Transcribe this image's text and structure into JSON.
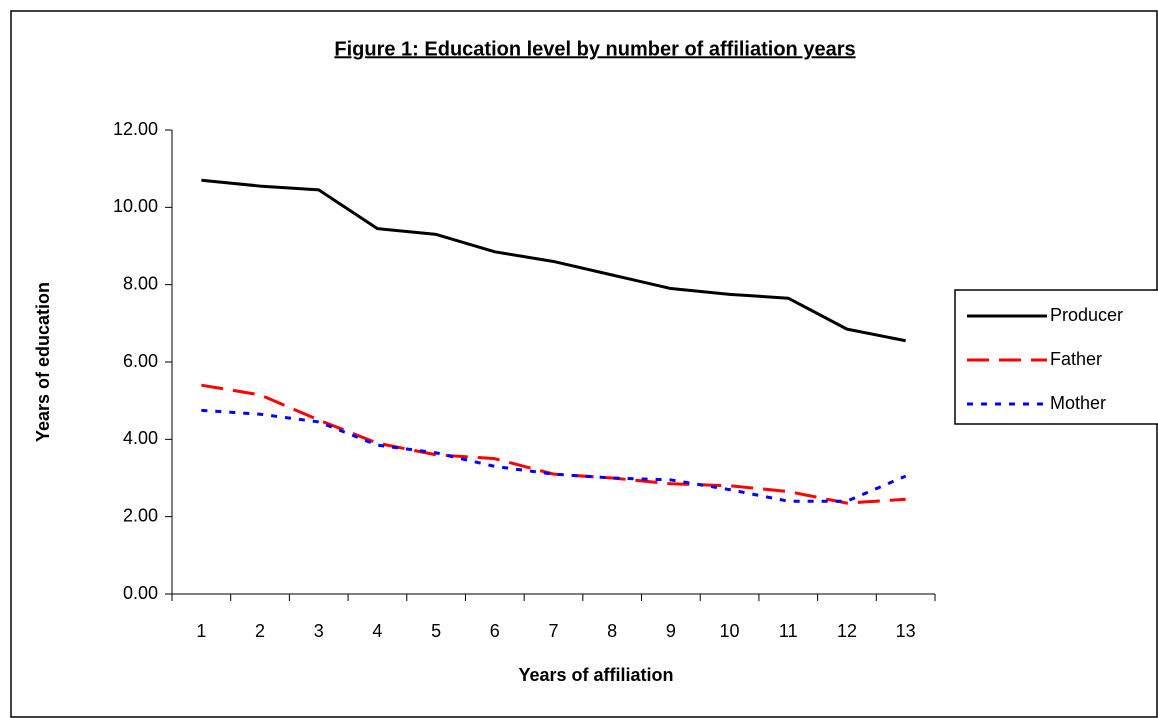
{
  "chart_data": {
    "type": "line",
    "title": "Figure 1: Education level by number of affiliation years",
    "x_label": "Years of affiliation",
    "y_label": "Years of education",
    "categories": [
      "1",
      "2",
      "3",
      "4",
      "5",
      "6",
      "7",
      "8",
      "9",
      "10",
      "11",
      "12",
      "13"
    ],
    "series": [
      {
        "name": "Producer",
        "color": "#000000",
        "dash": "solid",
        "values": [
          10.7,
          10.55,
          10.45,
          9.45,
          9.3,
          8.85,
          8.6,
          8.25,
          7.9,
          7.75,
          7.65,
          6.85,
          6.55
        ]
      },
      {
        "name": "Father",
        "color": "#ff0000",
        "dash": "dashed",
        "values": [
          5.4,
          5.15,
          4.5,
          3.9,
          3.6,
          3.5,
          3.1,
          3.0,
          2.85,
          2.8,
          2.65,
          2.35,
          2.45
        ]
      },
      {
        "name": "Mother",
        "color": "#0000ff",
        "dash": "dotted",
        "values": [
          4.75,
          4.65,
          4.45,
          3.85,
          3.65,
          3.3,
          3.1,
          3.0,
          2.95,
          2.7,
          2.4,
          2.4,
          3.05
        ]
      }
    ],
    "ylim": [
      0,
      12
    ],
    "yticks": [
      {
        "value": 0,
        "label": "0.00"
      },
      {
        "value": 2,
        "label": "2.00"
      },
      {
        "value": 4,
        "label": "4.00"
      },
      {
        "value": 6,
        "label": "6.00"
      },
      {
        "value": 8,
        "label": "8.00"
      },
      {
        "value": 10,
        "label": "10.00"
      },
      {
        "value": 12,
        "label": "12.00"
      }
    ],
    "grid": false,
    "legend": "right"
  }
}
